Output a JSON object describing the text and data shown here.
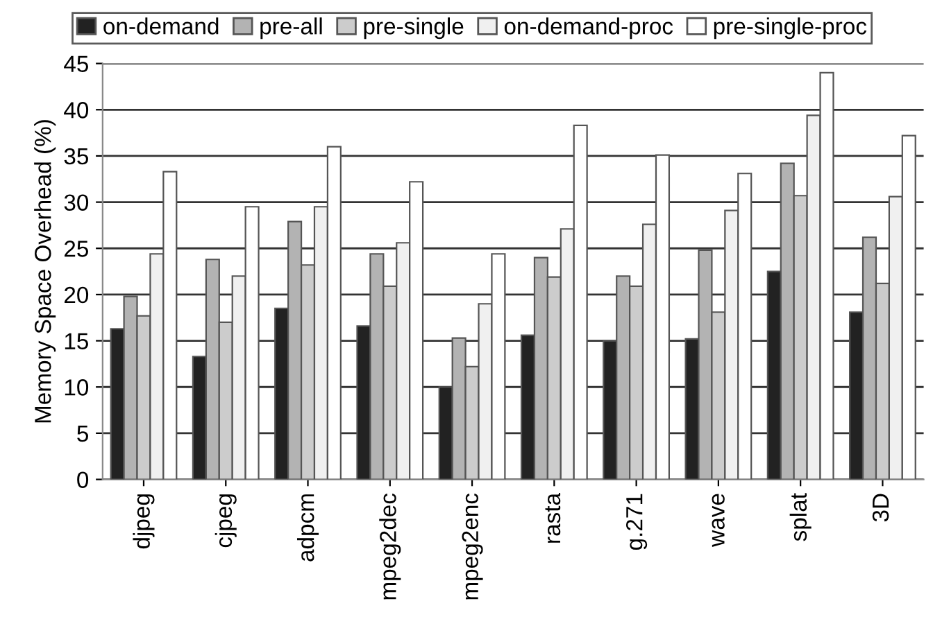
{
  "chart_data": {
    "type": "bar",
    "ylabel": "Memory Space Overhead (%)",
    "categories": [
      "djpeg",
      "cjpeg",
      "adpcm",
      "mpeg2dec",
      "mpeg2enc",
      "rasta",
      "g.271",
      "wave",
      "splat",
      "3D"
    ],
    "series": [
      {
        "name": "on-demand",
        "color": "#222222",
        "values": [
          16.3,
          13.3,
          18.5,
          16.6,
          10.0,
          15.6,
          15.0,
          15.2,
          22.5,
          18.1
        ]
      },
      {
        "name": "pre-all",
        "color": "#b3b3b3",
        "values": [
          19.8,
          23.8,
          27.9,
          24.4,
          15.3,
          24.0,
          22.0,
          24.8,
          34.2,
          26.2
        ]
      },
      {
        "name": "pre-single",
        "color": "#cccccc",
        "values": [
          17.7,
          17.0,
          23.2,
          20.9,
          12.2,
          21.9,
          20.9,
          18.1,
          30.7,
          21.2
        ]
      },
      {
        "name": "on-demand-proc",
        "color": "#f0f0f0",
        "values": [
          24.4,
          22.0,
          29.5,
          25.6,
          19.0,
          27.1,
          27.6,
          29.1,
          39.4,
          30.6
        ]
      },
      {
        "name": "pre-single-proc",
        "color": "#ffffff",
        "values": [
          33.3,
          29.5,
          36.0,
          32.2,
          24.4,
          38.3,
          35.1,
          33.1,
          44.0,
          37.2
        ]
      }
    ],
    "ylim": [
      0,
      45
    ],
    "yticks": [
      0,
      5,
      10,
      15,
      20,
      25,
      30,
      35,
      40,
      45
    ],
    "grid": "y",
    "legend": "top"
  }
}
